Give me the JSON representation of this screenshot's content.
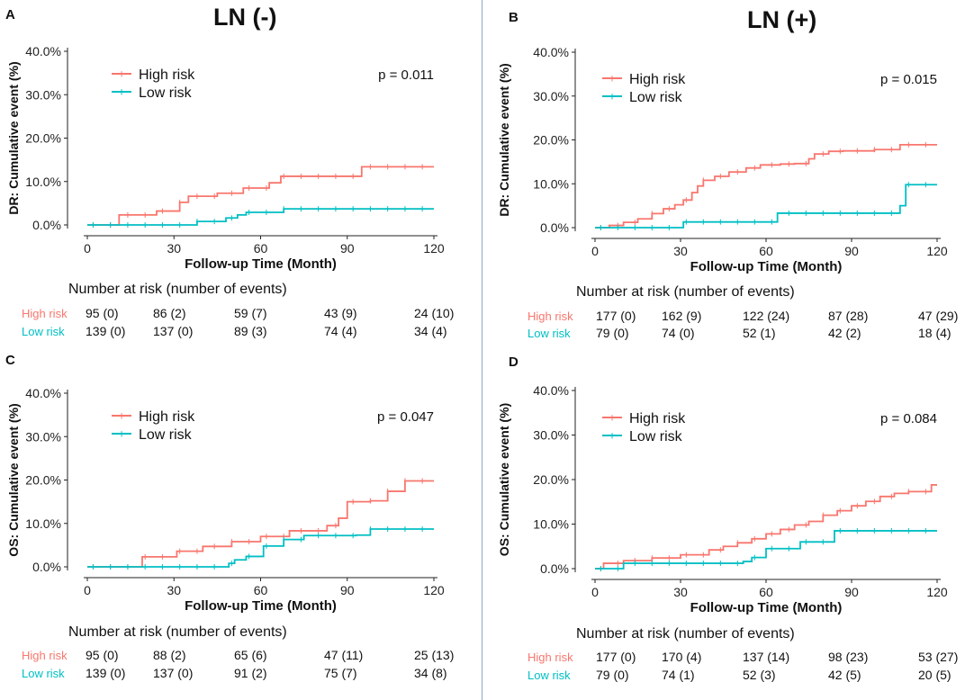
{
  "figure": {
    "header_left": "LN (-)",
    "header_right": "LN (+)",
    "colors": {
      "high": "#f8766d",
      "low": "#00bfc4"
    },
    "y_ticks": [
      "0.0%",
      "10.0%",
      "20.0%",
      "30.0%",
      "40.0%"
    ],
    "x_ticks": [
      "0",
      "30",
      "60",
      "90",
      "120"
    ],
    "risk_times": [
      0,
      30,
      60,
      90,
      120
    ]
  },
  "chart_data": [
    {
      "type": "line",
      "panel": "A",
      "title": "",
      "ylabel": "DR: Cumulative event (%)",
      "xlabel": "Follow-up Time (Month)",
      "xlim": [
        0,
        120
      ],
      "ylim": [
        0,
        40
      ],
      "pvalue": "p = 0.011",
      "legend": [
        "High risk",
        "Low risk"
      ],
      "series": [
        {
          "name": "High risk",
          "x": [
            0,
            11,
            24,
            32,
            35,
            45,
            54,
            63,
            67,
            95,
            120
          ],
          "y": [
            0,
            2.3,
            3.2,
            5.2,
            6.6,
            7.3,
            8.5,
            9.7,
            11.2,
            13.4,
            13.4
          ]
        },
        {
          "name": "Low risk",
          "x": [
            0,
            38,
            48,
            52,
            55,
            68,
            120
          ],
          "y": [
            0,
            0.8,
            1.6,
            2.3,
            2.9,
            3.7,
            3.7
          ]
        }
      ],
      "risk_table": {
        "title": "Number at risk (number of events)",
        "labels": [
          "High risk",
          "Low risk"
        ],
        "rows": [
          [
            "95 (0)",
            "86 (2)",
            "59 (7)",
            "43 (9)",
            "24 (10)"
          ],
          [
            "139 (0)",
            "137 (0)",
            "89 (3)",
            "74 (4)",
            "34 (4)"
          ]
        ]
      }
    },
    {
      "type": "line",
      "panel": "B",
      "title": "",
      "ylabel": "DR: Cumulative event (%)",
      "xlabel": "Follow-up Time (Month)",
      "xlim": [
        0,
        120
      ],
      "ylim": [
        0,
        40
      ],
      "pvalue": "p = 0.015",
      "legend": [
        "High risk",
        "Low risk"
      ],
      "series": [
        {
          "name": "High risk",
          "x": [
            0,
            5,
            10,
            15,
            20,
            24,
            28,
            31,
            34,
            36,
            38,
            42,
            47,
            53,
            58,
            65,
            70,
            75,
            77,
            82,
            87,
            98,
            107,
            120
          ],
          "y": [
            0,
            0.5,
            1.2,
            2,
            3.2,
            4.3,
            5.2,
            6.3,
            8,
            9.5,
            10.8,
            11.7,
            12.7,
            13.6,
            14.3,
            14.5,
            14.6,
            15.7,
            16.8,
            17.4,
            17.5,
            17.8,
            18.9,
            18.9
          ]
        },
        {
          "name": "Low risk",
          "x": [
            0,
            31,
            64,
            107,
            109,
            120
          ],
          "y": [
            0,
            1.3,
            3.3,
            5,
            9.8,
            9.8
          ]
        }
      ],
      "risk_table": {
        "title": "Number at risk (number of events)",
        "labels": [
          "High risk",
          "Low risk"
        ],
        "rows": [
          [
            "177 (0)",
            "162 (9)",
            "122 (24)",
            "87 (28)",
            "47 (29)"
          ],
          [
            "79 (0)",
            "74 (0)",
            "52 (1)",
            "42 (2)",
            "18 (4)"
          ]
        ]
      }
    },
    {
      "type": "line",
      "panel": "C",
      "title": "",
      "ylabel": "OS: Cumulative event (%)",
      "xlabel": "Follow-up Time (Month)",
      "xlim": [
        0,
        120
      ],
      "ylim": [
        0,
        40
      ],
      "pvalue": "p = 0.047",
      "legend": [
        "High risk",
        "Low risk"
      ],
      "series": [
        {
          "name": "High risk",
          "x": [
            0,
            19,
            31,
            40,
            50,
            60,
            70,
            83,
            87,
            90,
            98,
            104,
            110,
            120
          ],
          "y": [
            0,
            2.3,
            3.6,
            4.7,
            5.8,
            7.0,
            8.3,
            9.5,
            11.2,
            15.0,
            15.2,
            17.4,
            19.8,
            19.8
          ]
        },
        {
          "name": "Low risk",
          "x": [
            0,
            49,
            51,
            55,
            61,
            68,
            75,
            93,
            98,
            120
          ],
          "y": [
            0,
            0.8,
            1.6,
            2.4,
            4.8,
            6.3,
            7.2,
            7.3,
            8.7,
            8.7
          ]
        }
      ],
      "risk_table": {
        "title": "Number at risk (number of events)",
        "labels": [
          "High risk",
          "Low risk"
        ],
        "rows": [
          [
            "95 (0)",
            "88 (2)",
            "65 (6)",
            "47 (11)",
            "25 (13)"
          ],
          [
            "139 (0)",
            "137 (0)",
            "91 (2)",
            "75 (7)",
            "34 (8)"
          ]
        ]
      }
    },
    {
      "type": "line",
      "panel": "D",
      "title": "",
      "ylabel": "OS: Cumulative event (%)",
      "xlabel": "Follow-up Time (Month)",
      "xlim": [
        0,
        120
      ],
      "ylim": [
        0,
        40
      ],
      "pvalue": "p = 0.084",
      "legend": [
        "High risk",
        "Low risk"
      ],
      "series": [
        {
          "name": "High risk",
          "x": [
            0,
            3,
            10,
            20,
            30,
            40,
            45,
            50,
            55,
            60,
            65,
            70,
            75,
            80,
            85,
            90,
            95,
            100,
            105,
            110,
            118,
            120
          ],
          "y": [
            0,
            1.2,
            1.8,
            2.4,
            3.1,
            4.2,
            5.0,
            5.8,
            6.7,
            7.8,
            8.8,
            9.8,
            10.6,
            12.0,
            13.0,
            14.1,
            15.1,
            16.2,
            16.9,
            17.3,
            18.8,
            18.8
          ]
        },
        {
          "name": "Low risk",
          "x": [
            0,
            10,
            52,
            55,
            60,
            72,
            84,
            120
          ],
          "y": [
            0,
            1.2,
            1.6,
            2.5,
            4.5,
            6.0,
            8.5,
            8.5
          ]
        }
      ],
      "risk_table": {
        "title": "Number at risk (number of events)",
        "labels": [
          "High risk",
          "Low risk"
        ],
        "rows": [
          [
            "177 (0)",
            "170 (4)",
            "137 (14)",
            "98 (23)",
            "53 (27)"
          ],
          [
            "79 (0)",
            "74 (1)",
            "52 (3)",
            "42 (5)",
            "20 (5)"
          ]
        ]
      }
    }
  ]
}
